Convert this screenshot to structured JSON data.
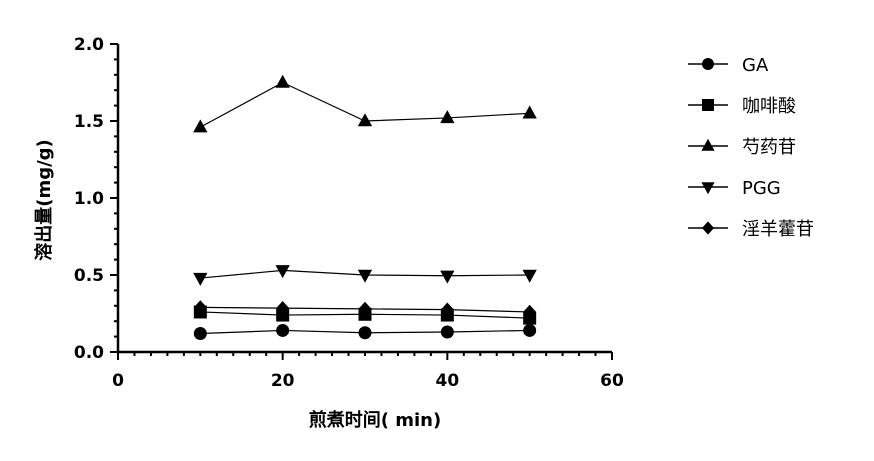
{
  "chart_data": {
    "type": "line",
    "xlabel": "煎煮时间( min)",
    "ylabel": "溶出量(mg/g)",
    "xlim": [
      0,
      60
    ],
    "ylim": [
      0,
      2.0
    ],
    "x_ticks": [
      "0",
      "20",
      "40",
      "60"
    ],
    "y_ticks": [
      "0.0",
      "0.5",
      "1.0",
      "1.5",
      "2.0"
    ],
    "x_minor_step": 2,
    "y_minor_step": 0.1,
    "grid": false,
    "legend_position": "right",
    "x": [
      10,
      20,
      30,
      40,
      50
    ],
    "series": [
      {
        "name": "GA",
        "marker": "circle",
        "values": [
          0.12,
          0.14,
          0.125,
          0.13,
          0.14
        ]
      },
      {
        "name": "咖啡酸",
        "marker": "square",
        "values": [
          0.26,
          0.24,
          0.245,
          0.24,
          0.22
        ]
      },
      {
        "name": "芍药苷",
        "marker": "triangle-up",
        "values": [
          1.46,
          1.75,
          1.5,
          1.52,
          1.55
        ]
      },
      {
        "name": "PGG",
        "marker": "triangle-down",
        "values": [
          0.48,
          0.53,
          0.5,
          0.495,
          0.5
        ]
      },
      {
        "name": "淫羊藿苷",
        "marker": "diamond",
        "values": [
          0.29,
          0.285,
          0.28,
          0.275,
          0.26
        ]
      }
    ],
    "colors": {
      "line": "#000000",
      "marker": "#000000"
    }
  }
}
